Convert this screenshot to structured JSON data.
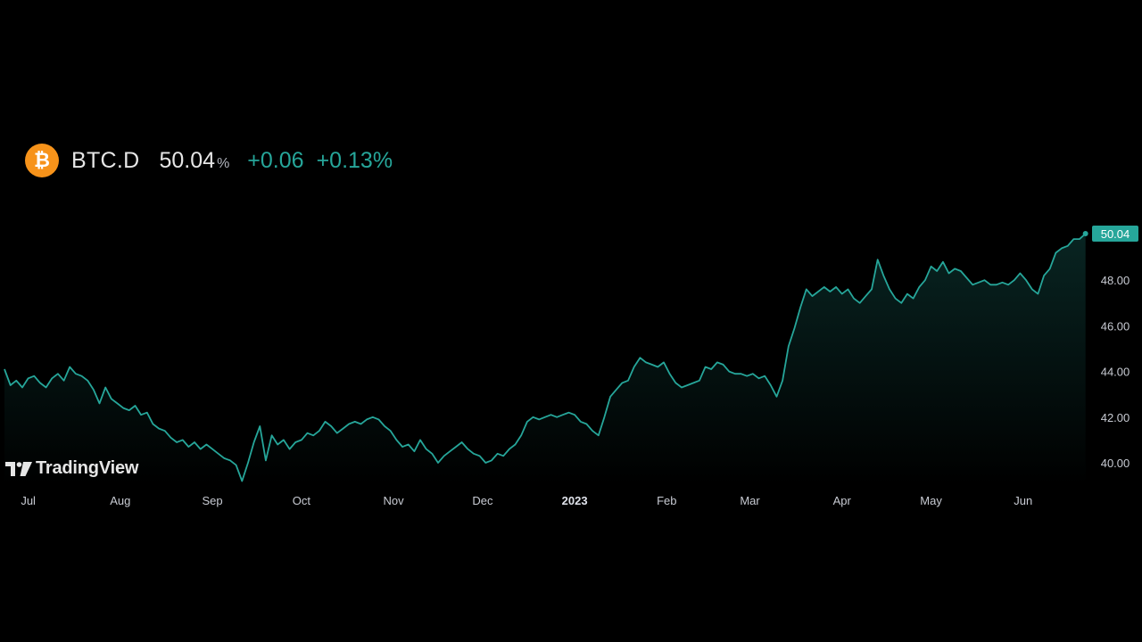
{
  "header": {
    "symbol": "BTC.D",
    "price": "50.04",
    "unit": "%",
    "change_abs": "+0.06",
    "change_pct": "+0.13%",
    "coin_glyph": "₿"
  },
  "branding": {
    "name": "TradingView"
  },
  "colors": {
    "line": "#26a69a",
    "accent_orange": "#f7931a",
    "background": "#000000",
    "text": "#d1d4dc"
  },
  "chart_data": {
    "type": "area",
    "ylim": [
      39.0,
      50.5
    ],
    "y_ticks": [
      {
        "value": 40,
        "label": "40.00"
      },
      {
        "value": 42,
        "label": "42.00"
      },
      {
        "value": 44,
        "label": "44.00"
      },
      {
        "value": 46,
        "label": "46.00"
      },
      {
        "value": 48,
        "label": "48.00"
      }
    ],
    "last_value_label": "50.04",
    "x_range": [
      "2022-06-23",
      "2023-06-23"
    ],
    "x_ticks": [
      {
        "date": "2022-07-01",
        "label": "Jul",
        "bold": false
      },
      {
        "date": "2022-08-01",
        "label": "Aug",
        "bold": false
      },
      {
        "date": "2022-09-01",
        "label": "Sep",
        "bold": false
      },
      {
        "date": "2022-10-01",
        "label": "Oct",
        "bold": false
      },
      {
        "date": "2022-11-01",
        "label": "Nov",
        "bold": false
      },
      {
        "date": "2022-12-01",
        "label": "Dec",
        "bold": false
      },
      {
        "date": "2023-01-01",
        "label": "2023",
        "bold": true
      },
      {
        "date": "2023-02-01",
        "label": "Feb",
        "bold": false
      },
      {
        "date": "2023-03-01",
        "label": "Mar",
        "bold": false
      },
      {
        "date": "2023-04-01",
        "label": "Apr",
        "bold": false
      },
      {
        "date": "2023-05-01",
        "label": "May",
        "bold": false
      },
      {
        "date": "2023-06-01",
        "label": "Jun",
        "bold": false
      }
    ],
    "series": [
      {
        "values": [
          [
            "2022-06-23",
            44.1
          ],
          [
            "2022-06-25",
            43.4
          ],
          [
            "2022-06-27",
            43.6
          ],
          [
            "2022-06-29",
            43.3
          ],
          [
            "2022-07-01",
            43.7
          ],
          [
            "2022-07-03",
            43.8
          ],
          [
            "2022-07-05",
            43.5
          ],
          [
            "2022-07-07",
            43.3
          ],
          [
            "2022-07-09",
            43.7
          ],
          [
            "2022-07-11",
            43.9
          ],
          [
            "2022-07-13",
            43.6
          ],
          [
            "2022-07-15",
            44.2
          ],
          [
            "2022-07-17",
            43.9
          ],
          [
            "2022-07-19",
            43.8
          ],
          [
            "2022-07-21",
            43.6
          ],
          [
            "2022-07-23",
            43.2
          ],
          [
            "2022-07-25",
            42.6
          ],
          [
            "2022-07-27",
            43.3
          ],
          [
            "2022-07-29",
            42.8
          ],
          [
            "2022-07-31",
            42.6
          ],
          [
            "2022-08-02",
            42.4
          ],
          [
            "2022-08-04",
            42.3
          ],
          [
            "2022-08-06",
            42.5
          ],
          [
            "2022-08-08",
            42.1
          ],
          [
            "2022-08-10",
            42.2
          ],
          [
            "2022-08-12",
            41.7
          ],
          [
            "2022-08-14",
            41.5
          ],
          [
            "2022-08-16",
            41.4
          ],
          [
            "2022-08-18",
            41.1
          ],
          [
            "2022-08-20",
            40.9
          ],
          [
            "2022-08-22",
            41.0
          ],
          [
            "2022-08-24",
            40.7
          ],
          [
            "2022-08-26",
            40.9
          ],
          [
            "2022-08-28",
            40.6
          ],
          [
            "2022-08-30",
            40.8
          ],
          [
            "2022-09-01",
            40.6
          ],
          [
            "2022-09-03",
            40.4
          ],
          [
            "2022-09-05",
            40.2
          ],
          [
            "2022-09-07",
            40.1
          ],
          [
            "2022-09-09",
            39.9
          ],
          [
            "2022-09-11",
            39.2
          ],
          [
            "2022-09-13",
            40.0
          ],
          [
            "2022-09-15",
            40.9
          ],
          [
            "2022-09-17",
            41.6
          ],
          [
            "2022-09-19",
            40.1
          ],
          [
            "2022-09-21",
            41.2
          ],
          [
            "2022-09-23",
            40.8
          ],
          [
            "2022-09-25",
            41.0
          ],
          [
            "2022-09-27",
            40.6
          ],
          [
            "2022-09-29",
            40.9
          ],
          [
            "2022-10-01",
            41.0
          ],
          [
            "2022-10-03",
            41.3
          ],
          [
            "2022-10-05",
            41.2
          ],
          [
            "2022-10-07",
            41.4
          ],
          [
            "2022-10-09",
            41.8
          ],
          [
            "2022-10-11",
            41.6
          ],
          [
            "2022-10-13",
            41.3
          ],
          [
            "2022-10-15",
            41.5
          ],
          [
            "2022-10-17",
            41.7
          ],
          [
            "2022-10-19",
            41.8
          ],
          [
            "2022-10-21",
            41.7
          ],
          [
            "2022-10-23",
            41.9
          ],
          [
            "2022-10-25",
            42.0
          ],
          [
            "2022-10-27",
            41.9
          ],
          [
            "2022-10-29",
            41.6
          ],
          [
            "2022-10-31",
            41.4
          ],
          [
            "2022-11-02",
            41.0
          ],
          [
            "2022-11-04",
            40.7
          ],
          [
            "2022-11-06",
            40.8
          ],
          [
            "2022-11-08",
            40.5
          ],
          [
            "2022-11-10",
            41.0
          ],
          [
            "2022-11-12",
            40.6
          ],
          [
            "2022-11-14",
            40.4
          ],
          [
            "2022-11-16",
            40.0
          ],
          [
            "2022-11-18",
            40.3
          ],
          [
            "2022-11-20",
            40.5
          ],
          [
            "2022-11-22",
            40.7
          ],
          [
            "2022-11-24",
            40.9
          ],
          [
            "2022-11-26",
            40.6
          ],
          [
            "2022-11-28",
            40.4
          ],
          [
            "2022-11-30",
            40.3
          ],
          [
            "2022-12-02",
            40.0
          ],
          [
            "2022-12-04",
            40.1
          ],
          [
            "2022-12-06",
            40.4
          ],
          [
            "2022-12-08",
            40.3
          ],
          [
            "2022-12-10",
            40.6
          ],
          [
            "2022-12-12",
            40.8
          ],
          [
            "2022-12-14",
            41.2
          ],
          [
            "2022-12-16",
            41.8
          ],
          [
            "2022-12-18",
            42.0
          ],
          [
            "2022-12-20",
            41.9
          ],
          [
            "2022-12-22",
            42.0
          ],
          [
            "2022-12-24",
            42.1
          ],
          [
            "2022-12-26",
            42.0
          ],
          [
            "2022-12-28",
            42.1
          ],
          [
            "2022-12-30",
            42.2
          ],
          [
            "2023-01-01",
            42.1
          ],
          [
            "2023-01-03",
            41.8
          ],
          [
            "2023-01-05",
            41.7
          ],
          [
            "2023-01-07",
            41.4
          ],
          [
            "2023-01-09",
            41.2
          ],
          [
            "2023-01-11",
            42.0
          ],
          [
            "2023-01-13",
            42.9
          ],
          [
            "2023-01-15",
            43.2
          ],
          [
            "2023-01-17",
            43.5
          ],
          [
            "2023-01-19",
            43.6
          ],
          [
            "2023-01-21",
            44.2
          ],
          [
            "2023-01-23",
            44.6
          ],
          [
            "2023-01-25",
            44.4
          ],
          [
            "2023-01-27",
            44.3
          ],
          [
            "2023-01-29",
            44.2
          ],
          [
            "2023-01-31",
            44.4
          ],
          [
            "2023-02-02",
            43.9
          ],
          [
            "2023-02-04",
            43.5
          ],
          [
            "2023-02-06",
            43.3
          ],
          [
            "2023-02-08",
            43.4
          ],
          [
            "2023-02-10",
            43.5
          ],
          [
            "2023-02-12",
            43.6
          ],
          [
            "2023-02-14",
            44.2
          ],
          [
            "2023-02-16",
            44.1
          ],
          [
            "2023-02-18",
            44.4
          ],
          [
            "2023-02-20",
            44.3
          ],
          [
            "2023-02-22",
            44.0
          ],
          [
            "2023-02-24",
            43.9
          ],
          [
            "2023-02-26",
            43.9
          ],
          [
            "2023-02-28",
            43.8
          ],
          [
            "2023-03-02",
            43.9
          ],
          [
            "2023-03-04",
            43.7
          ],
          [
            "2023-03-06",
            43.8
          ],
          [
            "2023-03-08",
            43.4
          ],
          [
            "2023-03-10",
            42.9
          ],
          [
            "2023-03-12",
            43.6
          ],
          [
            "2023-03-14",
            45.1
          ],
          [
            "2023-03-16",
            45.9
          ],
          [
            "2023-03-18",
            46.8
          ],
          [
            "2023-03-20",
            47.6
          ],
          [
            "2023-03-22",
            47.3
          ],
          [
            "2023-03-24",
            47.5
          ],
          [
            "2023-03-26",
            47.7
          ],
          [
            "2023-03-28",
            47.5
          ],
          [
            "2023-03-30",
            47.7
          ],
          [
            "2023-04-01",
            47.4
          ],
          [
            "2023-04-03",
            47.6
          ],
          [
            "2023-04-05",
            47.2
          ],
          [
            "2023-04-07",
            47.0
          ],
          [
            "2023-04-09",
            47.3
          ],
          [
            "2023-04-11",
            47.6
          ],
          [
            "2023-04-13",
            48.9
          ],
          [
            "2023-04-15",
            48.2
          ],
          [
            "2023-04-17",
            47.6
          ],
          [
            "2023-04-19",
            47.2
          ],
          [
            "2023-04-21",
            47.0
          ],
          [
            "2023-04-23",
            47.4
          ],
          [
            "2023-04-25",
            47.2
          ],
          [
            "2023-04-27",
            47.7
          ],
          [
            "2023-04-29",
            48.0
          ],
          [
            "2023-05-01",
            48.6
          ],
          [
            "2023-05-03",
            48.4
          ],
          [
            "2023-05-05",
            48.8
          ],
          [
            "2023-05-07",
            48.3
          ],
          [
            "2023-05-09",
            48.5
          ],
          [
            "2023-05-11",
            48.4
          ],
          [
            "2023-05-13",
            48.1
          ],
          [
            "2023-05-15",
            47.8
          ],
          [
            "2023-05-17",
            47.9
          ],
          [
            "2023-05-19",
            48.0
          ],
          [
            "2023-05-21",
            47.8
          ],
          [
            "2023-05-23",
            47.8
          ],
          [
            "2023-05-25",
            47.9
          ],
          [
            "2023-05-27",
            47.8
          ],
          [
            "2023-05-29",
            48.0
          ],
          [
            "2023-05-31",
            48.3
          ],
          [
            "2023-06-02",
            48.0
          ],
          [
            "2023-06-04",
            47.6
          ],
          [
            "2023-06-06",
            47.4
          ],
          [
            "2023-06-08",
            48.2
          ],
          [
            "2023-06-10",
            48.5
          ],
          [
            "2023-06-12",
            49.2
          ],
          [
            "2023-06-14",
            49.4
          ],
          [
            "2023-06-16",
            49.5
          ],
          [
            "2023-06-18",
            49.8
          ],
          [
            "2023-06-20",
            49.8
          ],
          [
            "2023-06-22",
            50.04
          ]
        ]
      }
    ]
  }
}
